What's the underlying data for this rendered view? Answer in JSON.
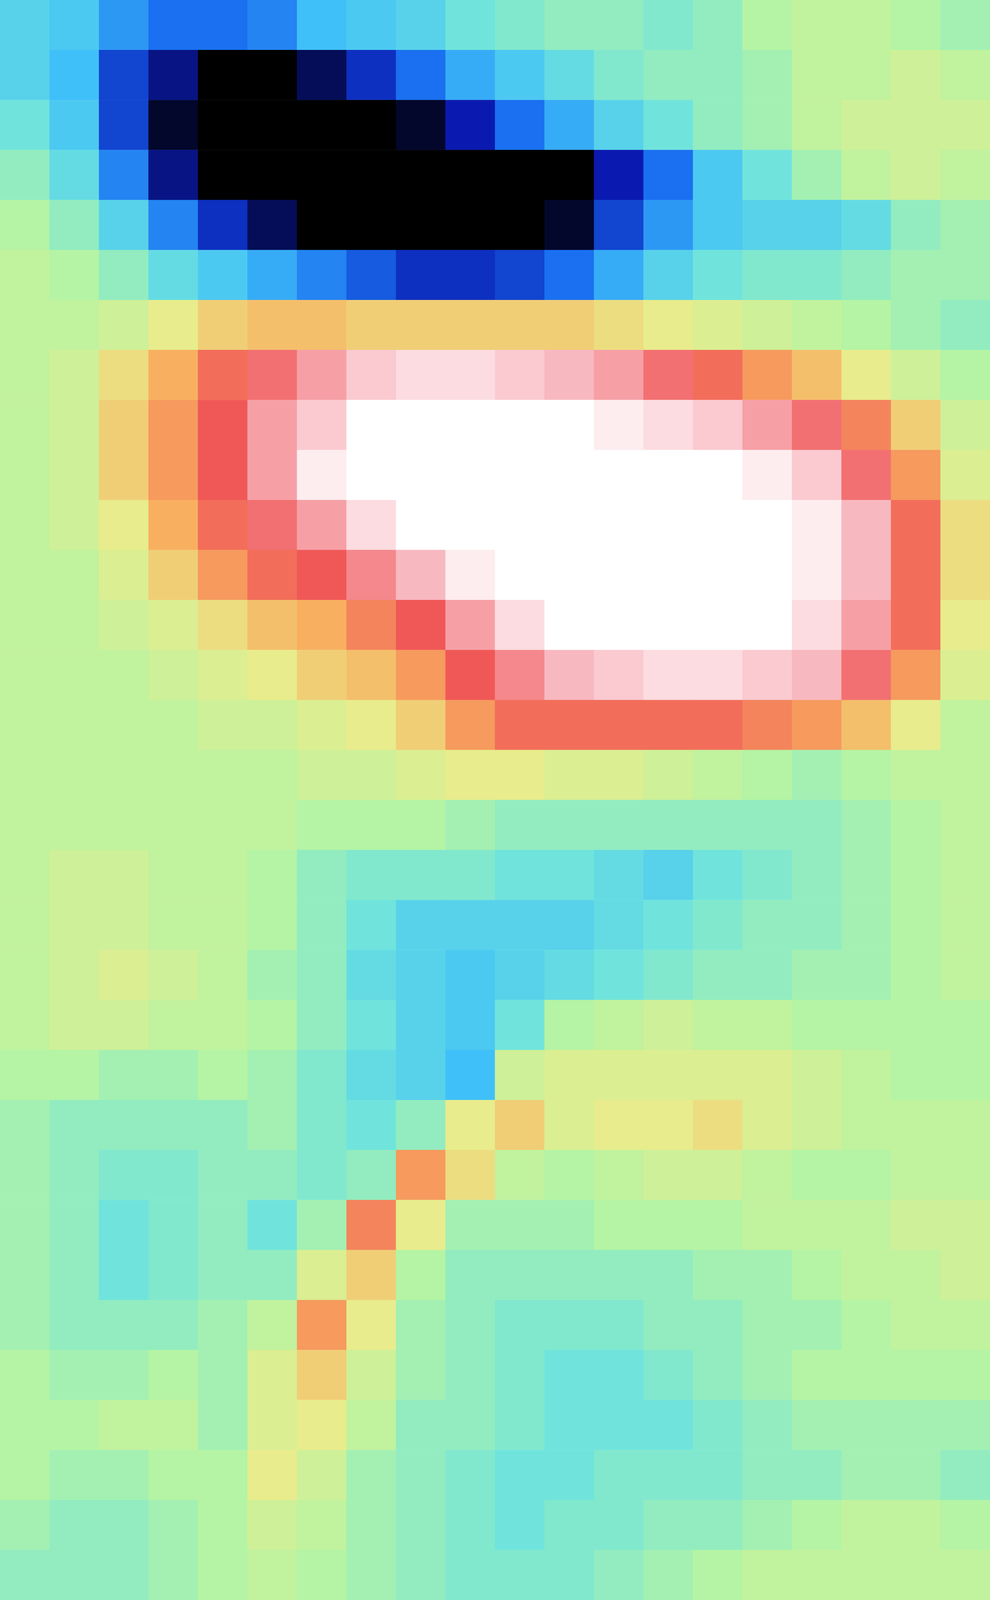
{
  "chart_data": {
    "type": "heatmap",
    "tick_labels": false,
    "color_range": [
      -1.2,
      1.2
    ],
    "cells": [
      [
        -0.3,
        -0.35,
        -0.5,
        -0.6,
        -0.6,
        -0.55,
        -0.4,
        -0.35,
        -0.3,
        -0.2,
        -0.15,
        -0.1,
        -0.1,
        -0.15,
        -0.1,
        0.0,
        0.05,
        0.05,
        0.0,
        -0.05
      ],
      [
        -0.3,
        -0.4,
        -0.7,
        -0.85,
        -1.05,
        -1.05,
        -0.9,
        -0.75,
        -0.6,
        -0.45,
        -0.35,
        -0.25,
        -0.15,
        -0.1,
        -0.1,
        -0.05,
        0.05,
        0.05,
        0.1,
        0.05
      ],
      [
        -0.2,
        -0.35,
        -0.7,
        -0.95,
        -1.1,
        -1.1,
        -1.1,
        -1.05,
        -0.95,
        -0.8,
        -0.6,
        -0.45,
        -0.3,
        -0.2,
        -0.1,
        -0.05,
        0.05,
        0.1,
        0.1,
        0.1
      ],
      [
        -0.1,
        -0.25,
        -0.55,
        -0.85,
        -1.1,
        -1.15,
        -1.15,
        -1.15,
        -1.1,
        -1.05,
        -1.05,
        -1.0,
        -0.8,
        -0.6,
        -0.35,
        -0.2,
        -0.05,
        0.05,
        0.1,
        0.05
      ],
      [
        0.0,
        -0.1,
        -0.3,
        -0.55,
        -0.75,
        -0.9,
        -1.05,
        -1.1,
        -1.1,
        -1.05,
        -1.0,
        -0.95,
        -0.7,
        -0.5,
        -0.35,
        -0.3,
        -0.3,
        -0.25,
        -0.1,
        -0.05
      ],
      [
        0.05,
        0.0,
        -0.1,
        -0.25,
        -0.35,
        -0.45,
        -0.55,
        -0.65,
        -0.75,
        -0.75,
        -0.7,
        -0.6,
        -0.45,
        -0.3,
        -0.2,
        -0.15,
        -0.15,
        -0.1,
        -0.05,
        -0.05
      ],
      [
        0.05,
        0.05,
        0.1,
        0.2,
        0.3,
        0.35,
        0.35,
        0.3,
        0.3,
        0.3,
        0.3,
        0.3,
        0.25,
        0.2,
        0.15,
        0.1,
        0.05,
        0.0,
        -0.05,
        -0.1
      ],
      [
        0.05,
        0.1,
        0.25,
        0.4,
        0.55,
        0.65,
        0.75,
        0.85,
        0.9,
        0.9,
        0.85,
        0.8,
        0.75,
        0.65,
        0.55,
        0.45,
        0.35,
        0.2,
        0.1,
        0.0
      ],
      [
        0.05,
        0.1,
        0.3,
        0.45,
        0.6,
        0.75,
        0.85,
        1.0,
        1.05,
        1.05,
        1.05,
        1.0,
        0.95,
        0.9,
        0.85,
        0.75,
        0.65,
        0.5,
        0.3,
        0.1
      ],
      [
        0.05,
        0.1,
        0.3,
        0.45,
        0.6,
        0.75,
        0.95,
        1.05,
        1.1,
        1.1,
        1.1,
        1.1,
        1.05,
        1.0,
        1.0,
        0.95,
        0.85,
        0.65,
        0.45,
        0.15
      ],
      [
        0.05,
        0.1,
        0.2,
        0.4,
        0.55,
        0.65,
        0.75,
        0.9,
        1.0,
        1.1,
        1.1,
        1.1,
        1.1,
        1.1,
        1.05,
        1.0,
        0.95,
        0.8,
        0.55,
        0.25
      ],
      [
        0.05,
        0.05,
        0.15,
        0.3,
        0.45,
        0.55,
        0.6,
        0.7,
        0.8,
        0.95,
        1.05,
        1.1,
        1.1,
        1.1,
        1.05,
        1.0,
        0.95,
        0.8,
        0.55,
        0.25
      ],
      [
        0.05,
        0.05,
        0.1,
        0.15,
        0.25,
        0.35,
        0.4,
        0.5,
        0.6,
        0.75,
        0.9,
        1.0,
        1.05,
        1.05,
        1.05,
        1.0,
        0.9,
        0.75,
        0.55,
        0.2
      ],
      [
        0.05,
        0.05,
        0.05,
        0.1,
        0.15,
        0.2,
        0.3,
        0.35,
        0.45,
        0.6,
        0.7,
        0.8,
        0.85,
        0.9,
        0.9,
        0.85,
        0.8,
        0.65,
        0.45,
        0.15
      ],
      [
        0.05,
        0.05,
        0.05,
        0.05,
        0.1,
        0.1,
        0.15,
        0.2,
        0.3,
        0.45,
        0.55,
        0.55,
        0.55,
        0.55,
        0.55,
        0.5,
        0.45,
        0.35,
        0.2,
        0.05
      ],
      [
        0.05,
        0.05,
        0.05,
        0.05,
        0.05,
        0.05,
        0.1,
        0.1,
        0.15,
        0.2,
        0.2,
        0.15,
        0.15,
        0.1,
        0.05,
        0.0,
        -0.05,
        0.0,
        0.05,
        0.05
      ],
      [
        0.05,
        0.05,
        0.05,
        0.05,
        0.05,
        0.05,
        0.0,
        0.0,
        0.0,
        -0.05,
        -0.1,
        -0.1,
        -0.1,
        -0.1,
        -0.1,
        -0.1,
        -0.1,
        -0.05,
        0.0,
        0.05
      ],
      [
        0.05,
        0.1,
        0.1,
        0.05,
        0.05,
        0.0,
        -0.1,
        -0.15,
        -0.15,
        -0.15,
        -0.2,
        -0.2,
        -0.25,
        -0.3,
        -0.2,
        -0.15,
        -0.1,
        -0.05,
        0.0,
        0.05
      ],
      [
        0.05,
        0.1,
        0.1,
        0.05,
        0.05,
        0.0,
        -0.1,
        -0.2,
        -0.3,
        -0.3,
        -0.3,
        -0.3,
        -0.25,
        -0.2,
        -0.15,
        -0.1,
        -0.1,
        -0.05,
        0.0,
        0.05
      ],
      [
        0.05,
        0.1,
        0.15,
        0.1,
        0.05,
        -0.05,
        -0.1,
        -0.25,
        -0.3,
        -0.35,
        -0.3,
        -0.25,
        -0.2,
        -0.15,
        -0.1,
        -0.1,
        -0.05,
        -0.05,
        0.0,
        0.05
      ],
      [
        0.05,
        0.1,
        0.1,
        0.05,
        0.05,
        0.0,
        -0.1,
        -0.2,
        -0.3,
        -0.35,
        -0.2,
        0.0,
        0.05,
        0.1,
        0.05,
        0.05,
        0.0,
        0.0,
        0.0,
        0.0
      ],
      [
        0.0,
        0.0,
        -0.05,
        -0.05,
        0.0,
        -0.05,
        -0.15,
        -0.25,
        -0.3,
        -0.4,
        0.1,
        0.15,
        0.15,
        0.15,
        0.15,
        0.15,
        0.1,
        0.05,
        0.0,
        0.0
      ],
      [
        -0.05,
        -0.1,
        -0.1,
        -0.1,
        -0.1,
        -0.05,
        -0.15,
        -0.2,
        -0.1,
        0.2,
        0.3,
        0.15,
        0.2,
        0.2,
        0.25,
        0.15,
        0.1,
        0.05,
        0.05,
        0.05
      ],
      [
        -0.05,
        -0.1,
        -0.15,
        -0.15,
        -0.1,
        -0.1,
        -0.15,
        -0.1,
        0.45,
        0.25,
        0.05,
        0.0,
        0.05,
        0.1,
        0.1,
        0.05,
        0.0,
        0.0,
        0.05,
        0.05
      ],
      [
        -0.05,
        -0.1,
        -0.2,
        -0.15,
        -0.1,
        -0.2,
        -0.05,
        0.5,
        0.2,
        -0.05,
        -0.05,
        -0.05,
        0.0,
        0.0,
        0.0,
        0.05,
        0.05,
        0.05,
        0.1,
        0.1
      ],
      [
        -0.05,
        -0.1,
        -0.2,
        -0.15,
        -0.1,
        -0.1,
        0.15,
        0.3,
        0.0,
        -0.1,
        -0.1,
        -0.1,
        -0.1,
        -0.1,
        -0.05,
        -0.05,
        0.0,
        0.05,
        0.05,
        0.1
      ],
      [
        -0.05,
        -0.1,
        -0.1,
        -0.1,
        -0.05,
        0.05,
        0.45,
        0.2,
        -0.05,
        -0.1,
        -0.15,
        -0.15,
        -0.15,
        -0.1,
        -0.1,
        -0.05,
        -0.05,
        0.0,
        0.05,
        0.05
      ],
      [
        0.0,
        -0.05,
        -0.05,
        0.0,
        -0.05,
        0.15,
        0.3,
        0.1,
        -0.05,
        -0.1,
        -0.15,
        -0.2,
        -0.2,
        -0.15,
        -0.1,
        -0.05,
        0.0,
        0.0,
        0.0,
        0.0
      ],
      [
        0.0,
        0.0,
        0.05,
        0.05,
        -0.05,
        0.15,
        0.2,
        0.05,
        -0.1,
        -0.1,
        -0.15,
        -0.2,
        -0.2,
        -0.2,
        -0.15,
        -0.1,
        -0.05,
        -0.05,
        -0.05,
        -0.05
      ],
      [
        0.0,
        -0.05,
        -0.05,
        0.0,
        0.0,
        0.2,
        0.1,
        -0.05,
        -0.1,
        -0.15,
        -0.2,
        -0.2,
        -0.15,
        -0.15,
        -0.15,
        -0.1,
        -0.1,
        -0.05,
        -0.05,
        -0.1
      ],
      [
        -0.05,
        -0.1,
        -0.1,
        -0.05,
        0.0,
        0.1,
        0.05,
        -0.05,
        -0.1,
        -0.15,
        -0.2,
        -0.15,
        -0.15,
        -0.1,
        -0.1,
        -0.05,
        0.0,
        0.05,
        0.05,
        0.0
      ],
      [
        -0.1,
        -0.1,
        -0.1,
        -0.05,
        0.0,
        0.05,
        0.0,
        -0.05,
        -0.1,
        -0.15,
        -0.15,
        -0.15,
        -0.1,
        -0.05,
        0.0,
        0.05,
        0.05,
        0.05,
        0.05,
        0.05
      ]
    ]
  }
}
